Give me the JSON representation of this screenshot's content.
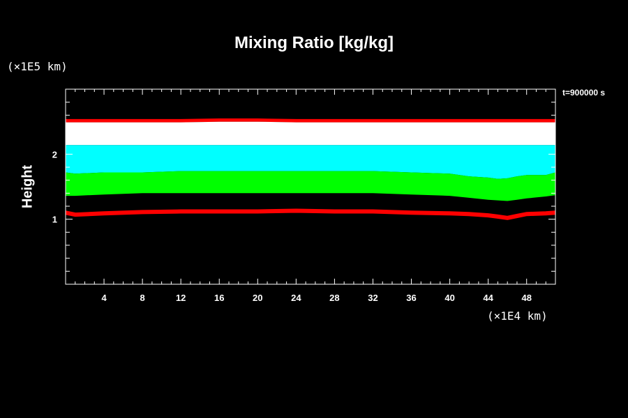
{
  "chart_data": {
    "type": "area",
    "title": "Mixing Ratio [kg/kg]",
    "xlabel": "",
    "ylabel": "Height",
    "x_unit": "(×1E4 km)",
    "y_unit": "(×1E5 km)",
    "time_label": "t=900000 s",
    "xlim": [
      0,
      51
    ],
    "ylim": [
      0,
      3
    ],
    "x_ticks": [
      4,
      8,
      12,
      16,
      20,
      24,
      28,
      32,
      36,
      40,
      44,
      48
    ],
    "y_ticks": [
      1,
      2
    ],
    "x": [
      0,
      1,
      4,
      8,
      12,
      16,
      20,
      24,
      28,
      32,
      36,
      40,
      42,
      44,
      45,
      46,
      47,
      48,
      50,
      51
    ],
    "bands": [
      {
        "color": "#ff0000",
        "top": [
          2.54,
          2.54,
          2.54,
          2.54,
          2.54,
          2.55,
          2.55,
          2.54,
          2.54,
          2.54,
          2.54,
          2.54,
          2.54,
          2.54,
          2.54,
          2.54,
          2.54,
          2.54,
          2.54,
          2.54
        ],
        "bottom": [
          2.49,
          2.49,
          2.49,
          2.49,
          2.49,
          2.5,
          2.5,
          2.49,
          2.49,
          2.49,
          2.49,
          2.49,
          2.49,
          2.49,
          2.49,
          2.49,
          2.49,
          2.49,
          2.49,
          2.49
        ]
      },
      {
        "color": "#ffffff",
        "top": [
          2.49,
          2.49,
          2.49,
          2.49,
          2.49,
          2.5,
          2.5,
          2.49,
          2.49,
          2.49,
          2.49,
          2.49,
          2.49,
          2.49,
          2.49,
          2.49,
          2.49,
          2.49,
          2.49,
          2.49
        ],
        "bottom": [
          2.14,
          2.14,
          2.14,
          2.14,
          2.14,
          2.14,
          2.14,
          2.14,
          2.14,
          2.14,
          2.14,
          2.14,
          2.14,
          2.14,
          2.14,
          2.14,
          2.14,
          2.14,
          2.14,
          2.14
        ]
      },
      {
        "color": "#00ffff",
        "top": [
          2.14,
          2.14,
          2.14,
          2.14,
          2.14,
          2.14,
          2.14,
          2.14,
          2.14,
          2.14,
          2.14,
          2.14,
          2.14,
          2.14,
          2.14,
          2.14,
          2.14,
          2.14,
          2.14,
          2.14
        ],
        "bottom": [
          1.72,
          1.7,
          1.72,
          1.72,
          1.74,
          1.74,
          1.74,
          1.74,
          1.74,
          1.74,
          1.72,
          1.7,
          1.66,
          1.64,
          1.62,
          1.63,
          1.66,
          1.68,
          1.68,
          1.72
        ]
      },
      {
        "color": "#00ff00",
        "top": [
          1.72,
          1.7,
          1.72,
          1.72,
          1.74,
          1.74,
          1.74,
          1.74,
          1.74,
          1.74,
          1.72,
          1.7,
          1.66,
          1.64,
          1.62,
          1.63,
          1.66,
          1.68,
          1.68,
          1.72
        ],
        "bottom": [
          1.36,
          1.36,
          1.38,
          1.4,
          1.4,
          1.4,
          1.4,
          1.4,
          1.4,
          1.4,
          1.38,
          1.36,
          1.33,
          1.3,
          1.29,
          1.28,
          1.3,
          1.32,
          1.35,
          1.37
        ]
      }
    ],
    "line": {
      "color": "#ff0000",
      "y": [
        1.1,
        1.07,
        1.09,
        1.11,
        1.12,
        1.12,
        1.12,
        1.13,
        1.12,
        1.12,
        1.1,
        1.09,
        1.08,
        1.06,
        1.04,
        1.02,
        1.05,
        1.08,
        1.09,
        1.1
      ]
    }
  }
}
